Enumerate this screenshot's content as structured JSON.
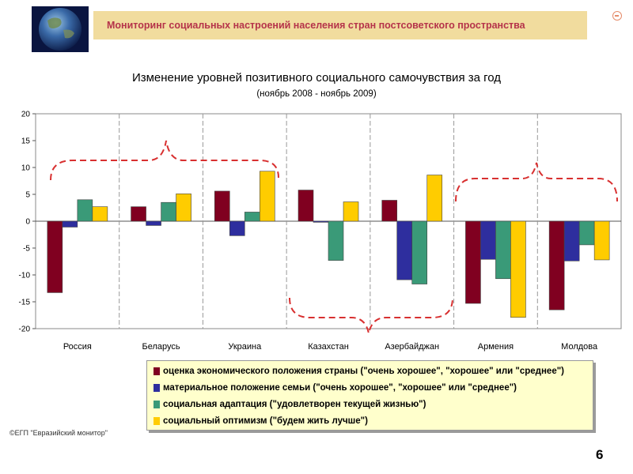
{
  "header": {
    "title": "Мониторинг социальных настроений населения стран постсоветского пространства"
  },
  "chart_data": {
    "type": "bar",
    "title": "Изменение уровней позитивного социального самочувствия за год",
    "subtitle": "(ноябрь 2008 - ноябрь 2009)",
    "categories": [
      "Россия",
      "Беларусь",
      "Украина",
      "Казахстан",
      "Азербайджан",
      "Армения",
      "Молдова"
    ],
    "series": [
      {
        "name": "оценка экономического положения страны (\"очень хорошее\", \"хорошее\" или \"среднее\")",
        "color": "#800020",
        "values": [
          -13.3,
          2.7,
          5.6,
          5.8,
          3.9,
          -15.3,
          -16.5
        ]
      },
      {
        "name": "материальное положение семьи (\"очень хорошее\", \"хорошее\" или \"среднее\")",
        "color": "#2e2e9e",
        "values": [
          -1.1,
          -0.8,
          -2.7,
          -0.2,
          -10.9,
          -7.1,
          -7.4
        ]
      },
      {
        "name": "социальная адаптация (\"удовлетворен текущей жизнью\")",
        "color": "#3a9a78",
        "values": [
          4.0,
          3.5,
          1.7,
          -7.3,
          -11.7,
          -10.7,
          -4.4
        ]
      },
      {
        "name": "социальный оптимизм (\"будем жить лучше\")",
        "color": "#ffcc00",
        "values": [
          2.7,
          5.1,
          9.3,
          3.6,
          8.6,
          -17.9,
          -7.2
        ]
      }
    ],
    "ylim": [
      -20,
      20
    ],
    "yticks": [
      20,
      15,
      10,
      5,
      0,
      -5,
      -10,
      -15,
      -20
    ],
    "grid": false,
    "legend_position": "bottom"
  },
  "footer": {
    "copyright": "©ЕГП \"Евразийский монитор\"",
    "page_number": "6"
  },
  "colors": {
    "header_bg": "#f1dc9e",
    "header_text": "#b5334a",
    "annotation": "#d83030",
    "legend_bg": "#ffffcc"
  },
  "icons": {
    "logo": "globe-icon",
    "close": "close-icon"
  }
}
